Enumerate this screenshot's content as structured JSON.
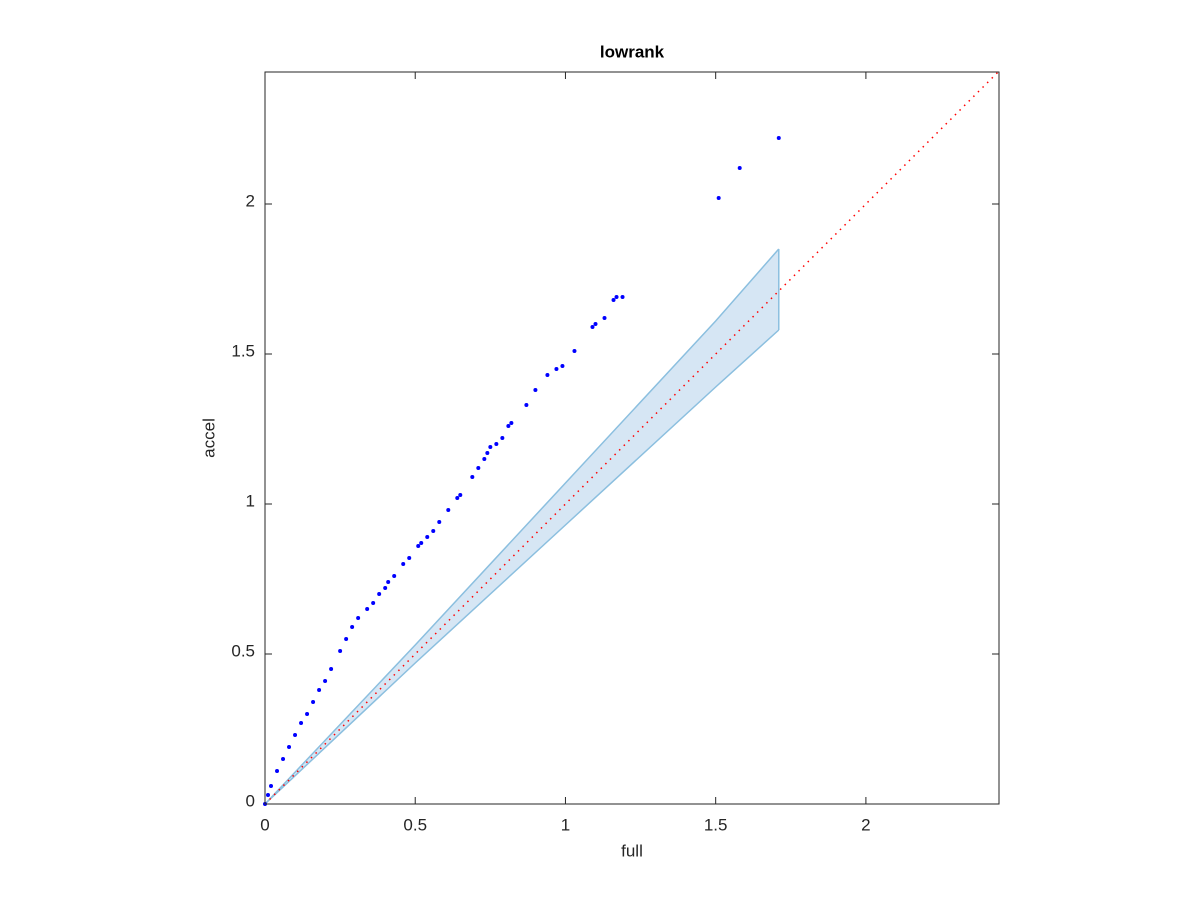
{
  "chart_data": {
    "type": "scatter",
    "title": "lowrank",
    "xlabel": "full",
    "ylabel": "accel",
    "xlim": [
      0,
      2.443
    ],
    "ylim": [
      0,
      2.44
    ],
    "xticks": [
      0,
      0.5,
      1,
      1.5,
      2
    ],
    "yticks": [
      0,
      0.5,
      1,
      1.5,
      2
    ],
    "points": {
      "color": "#0000ff",
      "x": [
        0,
        0.01,
        0.02,
        0.04,
        0.06,
        0.08,
        0.1,
        0.12,
        0.14,
        0.16,
        0.18,
        0.2,
        0.22,
        0.25,
        0.27,
        0.29,
        0.31,
        0.34,
        0.36,
        0.38,
        0.4,
        0.41,
        0.43,
        0.46,
        0.48,
        0.51,
        0.52,
        0.54,
        0.56,
        0.58,
        0.61,
        0.64,
        0.65,
        0.69,
        0.71,
        0.73,
        0.74,
        0.75,
        0.77,
        0.79,
        0.81,
        0.82,
        0.87,
        0.9,
        0.94,
        0.97,
        0.99,
        1.03,
        1.09,
        1.1,
        1.13,
        1.16,
        1.17,
        1.19,
        1.51,
        1.58,
        1.71
      ],
      "y": [
        0,
        0.03,
        0.06,
        0.11,
        0.15,
        0.19,
        0.23,
        0.27,
        0.3,
        0.34,
        0.38,
        0.41,
        0.45,
        0.51,
        0.55,
        0.59,
        0.62,
        0.65,
        0.67,
        0.7,
        0.72,
        0.74,
        0.76,
        0.8,
        0.82,
        0.86,
        0.87,
        0.89,
        0.91,
        0.94,
        0.98,
        1.02,
        1.03,
        1.09,
        1.12,
        1.15,
        1.17,
        1.19,
        1.2,
        1.22,
        1.26,
        1.27,
        1.33,
        1.38,
        1.43,
        1.45,
        1.46,
        1.51,
        1.59,
        1.6,
        1.62,
        1.68,
        1.69,
        1.69,
        2.02,
        2.12,
        2.22
      ]
    },
    "band": {
      "color": "#8bbfdf",
      "fill": "#d6e6f4",
      "x": [
        0,
        0.5,
        1,
        1.5,
        1.71
      ],
      "upper": [
        0,
        0.53,
        1.07,
        1.61,
        1.85
      ],
      "lower": [
        0,
        0.47,
        0.93,
        1.39,
        1.58
      ]
    },
    "reference_line": {
      "color": "#ff0000",
      "x": [
        0,
        2.443
      ],
      "y": [
        0,
        2.443
      ]
    }
  }
}
